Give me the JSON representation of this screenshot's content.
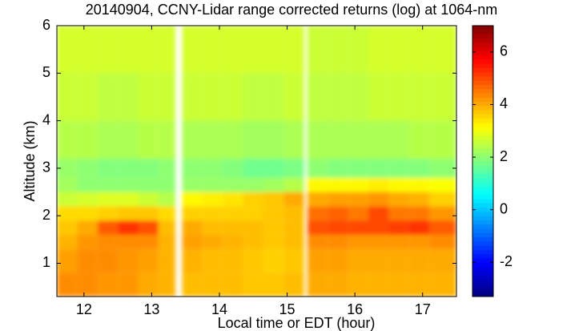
{
  "chart_data": {
    "type": "heatmap",
    "title": "20140904, CCNY-Lidar range corrected returns (log) at 1064-nm",
    "xlabel": "Local time or EDT (hour)",
    "ylabel": "Altitude (km)",
    "xlim": [
      11.6,
      17.5
    ],
    "xticks": [
      12,
      13,
      14,
      15,
      16,
      17
    ],
    "ylim": [
      0.3,
      6
    ],
    "yticks": [
      1,
      2,
      3,
      4,
      5,
      6
    ],
    "x_edges": [
      11.6,
      11.9,
      12.2,
      12.5,
      12.8,
      13.1,
      13.35,
      13.45,
      13.75,
      14.05,
      14.35,
      14.65,
      14.95,
      15.25,
      15.3,
      15.6,
      15.9,
      16.2,
      16.5,
      16.8,
      17.1,
      17.5
    ],
    "y_edges": [
      0.3,
      0.8,
      1.3,
      1.6,
      1.9,
      2.2,
      2.5,
      2.8,
      3.2,
      4,
      5,
      6
    ],
    "z": [
      [
        4.3,
        4.3,
        4.2,
        4.2,
        4.0,
        3.9,
        null,
        3.8,
        3.8,
        3.8,
        3.7,
        3.7,
        3.8,
        null,
        4.0,
        4.0,
        3.9,
        3.9,
        3.9,
        3.9,
        3.9
      ],
      [
        4.1,
        4.3,
        4.3,
        4.2,
        4.1,
        3.9,
        null,
        3.9,
        3.8,
        3.8,
        3.7,
        3.6,
        3.7,
        null,
        4.1,
        4.1,
        4.0,
        4.0,
        4.0,
        4.0,
        4.0
      ],
      [
        3.9,
        4.2,
        4.3,
        4.3,
        4.3,
        3.9,
        null,
        4.1,
        4.0,
        3.9,
        3.8,
        3.7,
        3.8,
        null,
        4.3,
        4.3,
        4.2,
        4.2,
        4.2,
        4.2,
        4.3
      ],
      [
        3.7,
        4.0,
        4.8,
        5.2,
        4.9,
        3.8,
        null,
        4.0,
        3.8,
        3.8,
        3.8,
        3.7,
        3.8,
        null,
        4.9,
        5.0,
        5.0,
        5.0,
        5.1,
        5.2,
        4.8
      ],
      [
        3.5,
        3.5,
        3.6,
        3.7,
        3.7,
        3.5,
        null,
        3.6,
        3.6,
        3.6,
        3.6,
        3.7,
        3.8,
        null,
        4.6,
        4.7,
        4.5,
        5.0,
        4.5,
        4.5,
        4.2
      ],
      [
        2.6,
        2.7,
        2.8,
        2.8,
        2.6,
        2.4,
        null,
        3.2,
        3.3,
        3.4,
        3.6,
        3.7,
        4.0,
        null,
        4.0,
        4.1,
        4.1,
        4.2,
        4.0,
        3.9,
        3.6
      ],
      [
        2.2,
        2.0,
        2.0,
        2.0,
        2.0,
        2.0,
        null,
        2.1,
        2.1,
        2.1,
        2.1,
        2.2,
        2.4,
        null,
        3.2,
        3.2,
        3.2,
        3.3,
        3.2,
        3.2,
        3.1
      ],
      [
        2.1,
        2.0,
        1.9,
        1.9,
        1.9,
        2.0,
        null,
        2.0,
        2.0,
        1.9,
        1.7,
        1.7,
        1.8,
        null,
        2.0,
        1.9,
        1.9,
        1.9,
        1.9,
        1.9,
        2.0
      ],
      [
        2.4,
        2.4,
        2.3,
        2.3,
        2.4,
        2.4,
        null,
        2.3,
        2.3,
        2.3,
        2.2,
        2.2,
        2.3,
        null,
        2.3,
        2.3,
        2.3,
        2.3,
        2.3,
        2.4,
        2.4
      ],
      [
        2.6,
        2.6,
        2.5,
        2.5,
        2.6,
        2.6,
        null,
        2.6,
        2.6,
        2.6,
        2.5,
        2.5,
        2.6,
        null,
        2.5,
        2.5,
        2.5,
        2.6,
        2.6,
        2.6,
        2.6
      ],
      [
        2.7,
        2.7,
        2.7,
        2.7,
        2.7,
        2.7,
        null,
        2.7,
        2.7,
        2.7,
        2.7,
        2.7,
        2.7,
        null,
        2.6,
        2.6,
        2.6,
        2.7,
        2.7,
        2.7,
        2.7
      ]
    ],
    "colormap": "jet",
    "clim": [
      -3.3,
      7
    ],
    "cticks": [
      -2,
      0,
      2,
      4,
      6
    ]
  }
}
